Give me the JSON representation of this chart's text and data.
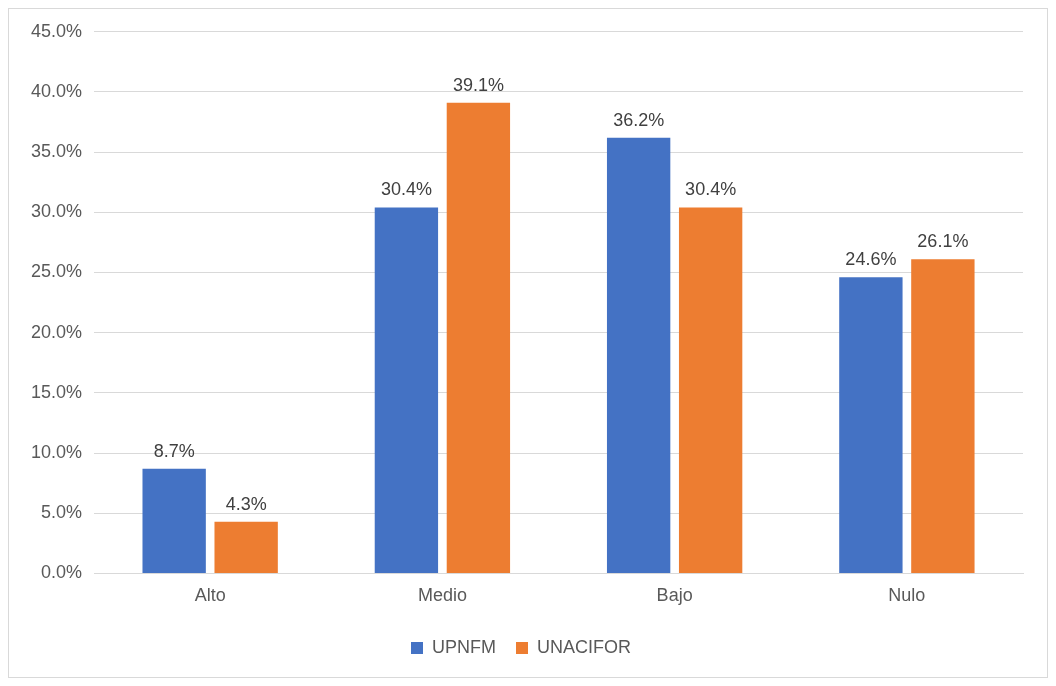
{
  "chart_data": {
    "type": "bar",
    "categories": [
      "Alto",
      "Medio",
      "Bajo",
      "Nulo"
    ],
    "series": [
      {
        "name": "UPNFM",
        "color": "#4472c4",
        "values": [
          8.7,
          30.4,
          36.2,
          24.6
        ],
        "value_labels": [
          "8.7%",
          "30.4%",
          "36.2%",
          "24.6%"
        ]
      },
      {
        "name": "UNACIFOR",
        "color": "#ed7d31",
        "values": [
          4.3,
          39.1,
          30.4,
          26.1
        ],
        "value_labels": [
          "4.3%",
          "39.1%",
          "30.4%",
          "26.1%"
        ]
      }
    ],
    "ylim": [
      0,
      45
    ],
    "yticks": [
      {
        "value": 0,
        "label": "0.0%"
      },
      {
        "value": 5,
        "label": "5.0%"
      },
      {
        "value": 10,
        "label": "10.0%"
      },
      {
        "value": 15,
        "label": "15.0%"
      },
      {
        "value": 20,
        "label": "20.0%"
      },
      {
        "value": 25,
        "label": "25.0%"
      },
      {
        "value": 30,
        "label": "30.0%"
      },
      {
        "value": 35,
        "label": "35.0%"
      },
      {
        "value": 40,
        "label": "40.0%"
      },
      {
        "value": 45,
        "label": "45.0%"
      }
    ],
    "grid": "y",
    "legend": "bottom"
  }
}
